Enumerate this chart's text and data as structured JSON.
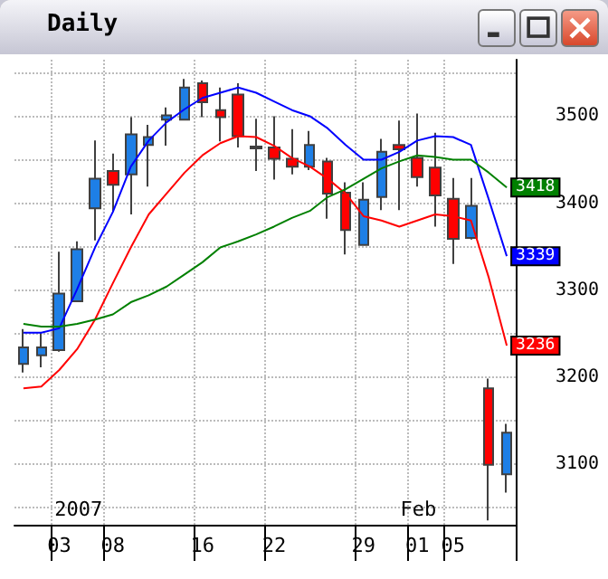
{
  "chart_data": {
    "type": "candlestick",
    "title": "Daily",
    "categories": [
      null,
      null,
      "03",
      null,
      null,
      "08",
      null,
      null,
      null,
      null,
      "16",
      null,
      null,
      null,
      "22",
      null,
      null,
      null,
      null,
      "29",
      null,
      null,
      "01",
      null,
      "05",
      null,
      null,
      null
    ],
    "ohlc": [
      [
        3215,
        3255,
        3205,
        3234
      ],
      [
        3225,
        3251,
        3211,
        3234
      ],
      [
        3231,
        3344,
        3229,
        3296
      ],
      [
        3287,
        3356,
        3287,
        3347
      ],
      [
        3394,
        3472,
        3357,
        3428
      ],
      [
        3437,
        3457,
        3390,
        3421
      ],
      [
        3433,
        3499,
        3387,
        3479
      ],
      [
        3467,
        3490,
        3419,
        3476
      ],
      [
        3496,
        3510,
        3466,
        3501
      ],
      [
        3496,
        3543,
        3495,
        3533
      ],
      [
        3538,
        3541,
        3499,
        3516
      ],
      [
        3507,
        3533,
        3471,
        3499
      ],
      [
        3525,
        3538,
        3464,
        3477
      ],
      [
        3465,
        3497,
        3437,
        3463
      ],
      [
        3464,
        3500,
        3427,
        3451
      ],
      [
        3451,
        3485,
        3433,
        3442
      ],
      [
        3442,
        3483,
        3438,
        3467
      ],
      [
        3448,
        3452,
        3382,
        3411
      ],
      [
        3412,
        3424,
        3341,
        3369
      ],
      [
        3352,
        3424,
        3352,
        3404
      ],
      [
        3407,
        3474,
        3392,
        3459
      ],
      [
        3467,
        3495,
        3392,
        3462
      ],
      [
        3452,
        3503,
        3419,
        3430
      ],
      [
        3441,
        3481,
        3373,
        3409
      ],
      [
        3405,
        3429,
        3330,
        3359
      ],
      [
        3360,
        3429,
        3358,
        3397
      ],
      [
        3187,
        3198,
        3035,
        3099
      ],
      [
        3088,
        3146,
        3067,
        3136
      ]
    ],
    "colors": [
      "#1e7fe6",
      "#1e7fe6",
      "#1e7fe6",
      "#1e7fe6",
      "#1e7fe6",
      "#ff0000",
      "#1e7fe6",
      "#1e7fe6",
      "#1e7fe6",
      "#1e7fe6",
      "#ff0000",
      "#ff0000",
      "#ff0000",
      "#ff0000",
      "#ff0000",
      "#ff0000",
      "#1e7fe6",
      "#ff0000",
      "#ff0000",
      "#1e7fe6",
      "#1e7fe6",
      "#ff0000",
      "#ff0000",
      "#ff0000",
      "#ff0000",
      "#1e7fe6",
      "#ff0000",
      "#1e7fe6"
    ],
    "series": [
      {
        "type": "line",
        "color": "#0000ff",
        "values": [
          3251,
          3251,
          3256,
          3301,
          3349,
          3390,
          3442,
          3472,
          3493,
          3508,
          3521,
          3527,
          3533,
          3527,
          3517,
          3507,
          3500,
          3486,
          3467,
          3450,
          3450,
          3459,
          3472,
          3477,
          3476,
          3467,
          3404,
          3339
        ],
        "value_labels": [
          null,
          null,
          null,
          null,
          null,
          null,
          null,
          null,
          null,
          null,
          null,
          null,
          null,
          null,
          null,
          null,
          null,
          null,
          null,
          null,
          null,
          null,
          null,
          null,
          null,
          null,
          null,
          "3339"
        ]
      },
      {
        "type": "line",
        "color": "#ff0000",
        "values": [
          3187,
          3189,
          3208,
          3232,
          3266,
          3308,
          3349,
          3387,
          3411,
          3435,
          3455,
          3469,
          3477,
          3476,
          3466,
          3452,
          3442,
          3428,
          3411,
          3385,
          3380,
          3373,
          3380,
          3387,
          3385,
          3380,
          3314,
          3236
        ],
        "value_labels": [
          null,
          null,
          null,
          null,
          null,
          null,
          null,
          null,
          null,
          null,
          null,
          null,
          null,
          null,
          null,
          null,
          null,
          null,
          null,
          null,
          null,
          null,
          null,
          null,
          null,
          null,
          null,
          "3236"
        ]
      },
      {
        "type": "line",
        "color": "#008000",
        "values": [
          3261,
          3258,
          3258,
          3261,
          3266,
          3272,
          3286,
          3294,
          3304,
          3318,
          3332,
          3349,
          3356,
          3364,
          3373,
          3383,
          3391,
          3407,
          3416,
          3428,
          3440,
          3448,
          3455,
          3453,
          3450,
          3450,
          3435,
          3418
        ],
        "value_labels": [
          null,
          null,
          null,
          null,
          null,
          null,
          null,
          null,
          null,
          null,
          null,
          null,
          null,
          null,
          null,
          null,
          null,
          null,
          null,
          null,
          null,
          null,
          null,
          null,
          null,
          null,
          null,
          "3418"
        ]
      }
    ],
    "ylim": [
      3030,
      3565
    ],
    "yticks": [
      {
        "value": 3050,
        "label": null
      },
      3100,
      {
        "value": 3150,
        "label": null
      },
      3200,
      {
        "value": 3250,
        "label": null
      },
      3300,
      {
        "value": 3350,
        "label": null
      },
      3400,
      {
        "value": 3450,
        "label": null
      },
      3500,
      {
        "value": 3550,
        "label": null
      }
    ],
    "annotations": [
      "2007",
      "Feb"
    ],
    "grid": true,
    "marker": "none",
    "line_style": "solid"
  }
}
